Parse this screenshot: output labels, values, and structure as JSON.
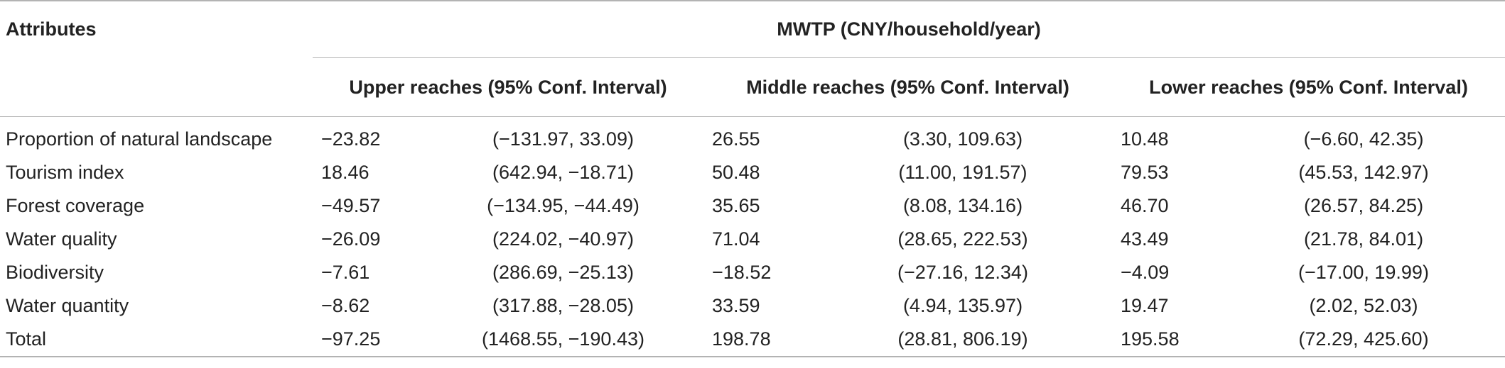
{
  "header": {
    "attributes_label": "Attributes",
    "mwtp_label": "MWTP (CNY/household/year)",
    "groups": [
      "Upper reaches (95% Conf. Interval)",
      "Middle reaches (95% Conf. Interval)",
      "Lower reaches (95% Conf. Interval)"
    ]
  },
  "rows": [
    {
      "attribute": "Proportion of natural landscape",
      "cells": [
        "−23.82",
        "(−131.97, 33.09)",
        "26.55",
        "(3.30, 109.63)",
        "10.48",
        "(−6.60, 42.35)"
      ]
    },
    {
      "attribute": "Tourism index",
      "cells": [
        "18.46",
        "(642.94, −18.71)",
        "50.48",
        "(11.00, 191.57)",
        "79.53",
        "(45.53, 142.97)"
      ]
    },
    {
      "attribute": "Forest coverage",
      "cells": [
        "−49.57",
        "(−134.95, −44.49)",
        "35.65",
        "(8.08, 134.16)",
        "46.70",
        "(26.57, 84.25)"
      ]
    },
    {
      "attribute": "Water quality",
      "cells": [
        "−26.09",
        "(224.02, −40.97)",
        "71.04",
        "(28.65, 222.53)",
        "43.49",
        "(21.78, 84.01)"
      ]
    },
    {
      "attribute": "Biodiversity",
      "cells": [
        "−7.61",
        "(286.69, −25.13)",
        "−18.52",
        "(−27.16, 12.34)",
        "−4.09",
        "(−17.00, 19.99)"
      ]
    },
    {
      "attribute": "Water quantity",
      "cells": [
        "−8.62",
        "(317.88, −28.05)",
        "33.59",
        "(4.94, 135.97)",
        "19.47",
        "(2.02, 52.03)"
      ]
    },
    {
      "attribute": "Total",
      "cells": [
        "−97.25",
        "(1468.55, −190.43)",
        "198.78",
        "(28.81, 806.19)",
        "195.58",
        "(72.29, 425.60)"
      ]
    }
  ]
}
